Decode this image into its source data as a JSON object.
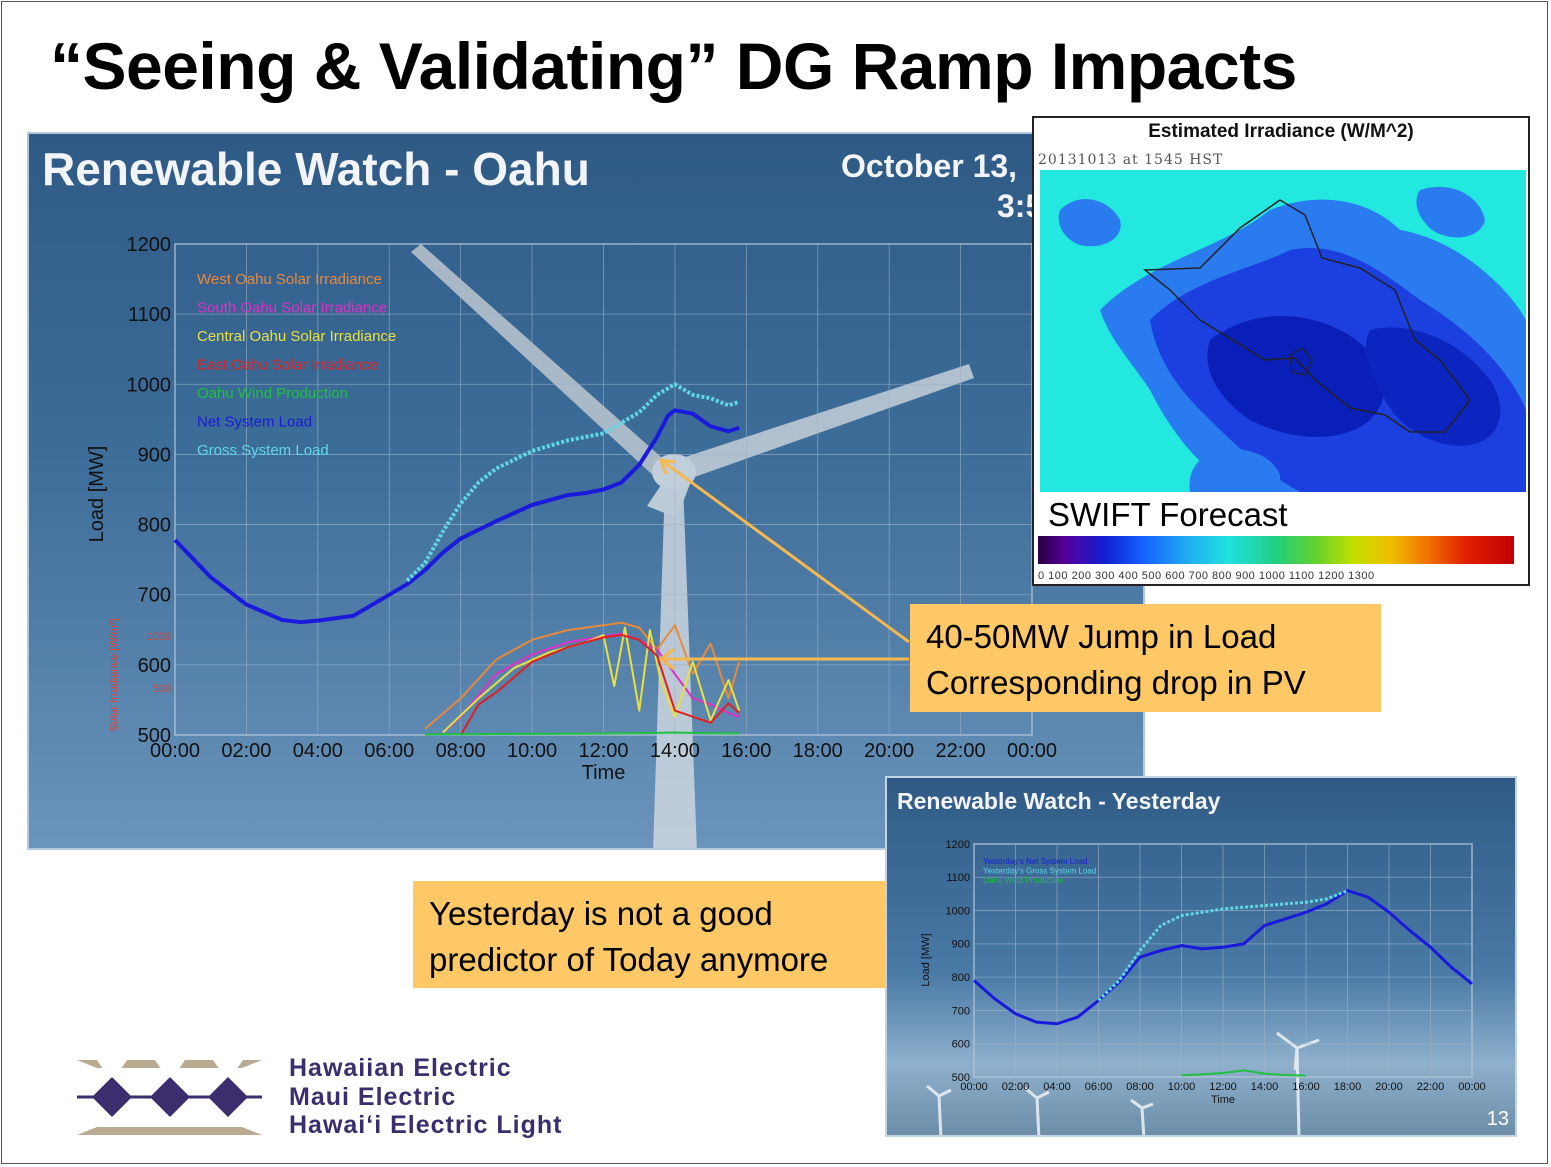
{
  "slide": {
    "title": "“Seeing & Validating” DG Ramp Impacts",
    "page_number": "13"
  },
  "main_panel": {
    "title": "Renewable Watch - Oahu",
    "date": "October 13,",
    "time": "3:5"
  },
  "swift_panel": {
    "title": "Estimated Irradiance (W/M^2)",
    "timestamp": "20131013 at 1545 HST",
    "label": "SWIFT Forecast",
    "scale_ticks": "0   100  200  300  400  500  600  700  800  900 1000 1100 1200 1300"
  },
  "callouts": {
    "jump_line1": "40-50MW  Jump in Load",
    "jump_line2": "Corresponding drop in PV",
    "yesterday_line1": "Yesterday is not a good",
    "yesterday_line2": "predictor of Today anymore"
  },
  "yesterday_panel": {
    "title": "Renewable Watch - Yesterday"
  },
  "company": {
    "line1": "Hawaiian Electric",
    "line2": "Maui Electric",
    "line3": "Hawai‘i Electric Light"
  },
  "colors": {
    "title_text": "#000000",
    "callout_bg": "#fdc865",
    "company_text": "#3c2e6e",
    "net_load": "#1a1adc",
    "gross_load": "#5fd7e6",
    "west_solar": "#e8893a",
    "south_solar": "#e030c8",
    "central_solar": "#e8e040",
    "east_solar": "#e02020",
    "wind": "#20c040"
  },
  "chart_data": [
    {
      "type": "line",
      "title": "Renewable Watch - Oahu",
      "xlabel": "Time",
      "ylabel": "Load [MW]",
      "ylabel_secondary": "Solar Irradiance [W/m²]",
      "x_ticks": [
        "00:00",
        "02:00",
        "04:00",
        "06:00",
        "08:00",
        "10:00",
        "12:00",
        "14:00",
        "16:00",
        "18:00",
        "20:00",
        "22:00",
        "00:00"
      ],
      "y_ticks": [
        1200,
        1100,
        1000,
        900,
        800,
        700,
        600,
        500
      ],
      "ylim": [
        500,
        1200
      ],
      "secondary_ticks": [
        "1000",
        "500"
      ],
      "legend_position": "top-left",
      "legend": [
        "West Oahu Solar Irradiance",
        "South Oahu Solar Irradiance",
        "Central Oahu Solar Irradiance",
        "East Oahu Solar Irradiance",
        "Oahu Wind Production",
        "Net System Load",
        "Gross System Load"
      ],
      "series": [
        {
          "name": "Net System Load",
          "color": "#1a1adc",
          "x": [
            0,
            1,
            2,
            3,
            3.5,
            4,
            5,
            6,
            6.5,
            7,
            7.5,
            8,
            9,
            10,
            11,
            11.5,
            12,
            12.5,
            13,
            13.5,
            13.8,
            14,
            14.5,
            15,
            15.5,
            15.8
          ],
          "y": [
            778,
            725,
            686,
            664,
            661,
            663,
            670,
            700,
            715,
            735,
            760,
            780,
            805,
            828,
            842,
            845,
            850,
            860,
            885,
            925,
            955,
            963,
            958,
            940,
            933,
            938
          ]
        },
        {
          "name": "Gross System Load",
          "color": "#5fd7e6",
          "x": [
            6.5,
            7,
            7.5,
            8,
            8.5,
            9,
            10,
            11,
            12,
            12.5,
            13,
            13.5,
            14,
            14.5,
            15,
            15.5,
            15.8
          ],
          "y": [
            720,
            745,
            790,
            830,
            860,
            880,
            905,
            920,
            930,
            945,
            960,
            985,
            1000,
            985,
            980,
            970,
            975
          ]
        },
        {
          "name": "West Oahu Solar Irradiance",
          "color": "#e8893a",
          "x": [
            7,
            8,
            9,
            10,
            11,
            12,
            12.5,
            13,
            13.5,
            14,
            14.5,
            15,
            15.5,
            15.8
          ],
          "y": [
            50,
            300,
            620,
            780,
            860,
            900,
            920,
            880,
            700,
            900,
            500,
            750,
            300,
            600
          ]
        },
        {
          "name": "South Oahu Solar Irradiance",
          "color": "#e030c8",
          "x": [
            7.5,
            8,
            9,
            10,
            11,
            12,
            12.5,
            13,
            13.5,
            14,
            14.5,
            15,
            15.5,
            15.8
          ],
          "y": [
            20,
            150,
            500,
            660,
            760,
            810,
            830,
            780,
            700,
            500,
            300,
            250,
            180,
            150
          ]
        },
        {
          "name": "Central Oahu Solar Irradiance",
          "color": "#e8e040",
          "x": [
            7.5,
            8.5,
            9.5,
            10.5,
            11.5,
            12,
            12.3,
            12.6,
            13,
            13.3,
            13.6,
            14,
            14.5,
            15,
            15.5,
            15.8
          ],
          "y": [
            20,
            300,
            550,
            680,
            760,
            820,
            400,
            880,
            200,
            860,
            450,
            150,
            600,
            120,
            450,
            200
          ]
        },
        {
          "name": "East Oahu Solar Irradiance",
          "color": "#e02020",
          "x": [
            8,
            8.5,
            9,
            10,
            11,
            12,
            12.5,
            13,
            13.5,
            14,
            14.5,
            15,
            15.5,
            15.8
          ],
          "y": [
            0,
            250,
            350,
            600,
            720,
            800,
            820,
            780,
            650,
            200,
            150,
            100,
            260,
            180
          ]
        },
        {
          "name": "Oahu Wind Production",
          "color": "#20c040",
          "x": [
            7,
            9,
            11,
            13,
            14,
            15,
            15.8
          ],
          "y": [
            5,
            8,
            10,
            15,
            20,
            14,
            12
          ]
        }
      ],
      "annotations": [
        "40-50MW  Jump in Load",
        "Corresponding drop in PV"
      ]
    },
    {
      "type": "line",
      "title": "Renewable Watch - Yesterday",
      "xlabel": "Time",
      "ylabel": "Load [MW]",
      "x_ticks": [
        "00:00",
        "02:00",
        "04:00",
        "06:00",
        "08:00",
        "10:00",
        "12:00",
        "14:00",
        "16:00",
        "18:00",
        "20:00",
        "22:00",
        "00:00"
      ],
      "y_ticks": [
        1200,
        1100,
        1000,
        900,
        800,
        700,
        600,
        500
      ],
      "ylim": [
        500,
        1200
      ],
      "legend": [
        "Yesterday's Net System Load",
        "Yesterday's Gross System Load",
        "Oahu Wind Production"
      ],
      "series": [
        {
          "name": "Yesterday's Net System Load",
          "color": "#1a1adc",
          "x": [
            0,
            1,
            2,
            3,
            4,
            5,
            6,
            7,
            8,
            9,
            10,
            11,
            12,
            13,
            14,
            15,
            16,
            17,
            18,
            19,
            20,
            21,
            22,
            23,
            24
          ],
          "y": [
            790,
            735,
            690,
            665,
            660,
            680,
            730,
            785,
            860,
            880,
            895,
            885,
            890,
            900,
            955,
            975,
            995,
            1020,
            1060,
            1040,
            995,
            940,
            890,
            830,
            780
          ]
        },
        {
          "name": "Yesterday's Gross System Load",
          "color": "#5fd7e6",
          "x": [
            6,
            7,
            8,
            9,
            10,
            11,
            12,
            13,
            14,
            15,
            16,
            17,
            18
          ],
          "y": [
            730,
            790,
            880,
            955,
            985,
            995,
            1005,
            1010,
            1015,
            1020,
            1025,
            1035,
            1060
          ]
        },
        {
          "name": "Oahu Wind Production",
          "color": "#20c040",
          "x": [
            10,
            11,
            12,
            13,
            14,
            15,
            16
          ],
          "y": [
            505,
            508,
            512,
            520,
            510,
            506,
            504
          ]
        }
      ]
    }
  ]
}
